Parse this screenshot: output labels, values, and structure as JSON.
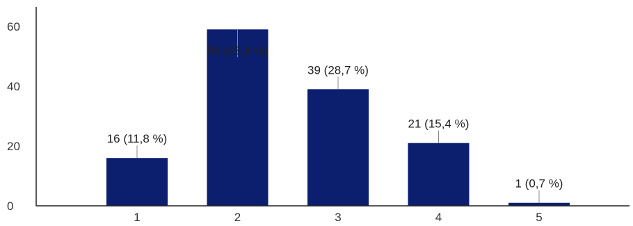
{
  "chart_data": {
    "type": "bar",
    "categories": [
      "1",
      "2",
      "3",
      "4",
      "5"
    ],
    "values": [
      16,
      59,
      39,
      21,
      1
    ],
    "data_labels": [
      "16 (11,8 %)",
      "59 (43,4 %)",
      "39 (28,7 %)",
      "21 (15,4 %)",
      "1 (0,7 %)"
    ],
    "yticks": [
      "0",
      "20",
      "40",
      "60"
    ],
    "ylim": [
      0,
      60
    ],
    "title": "",
    "xlabel": "",
    "ylabel": "",
    "grid": false,
    "legend": "none",
    "colors": {
      "bar": "#0b1f6e",
      "axis": "#222222",
      "leader": "#888888"
    }
  }
}
